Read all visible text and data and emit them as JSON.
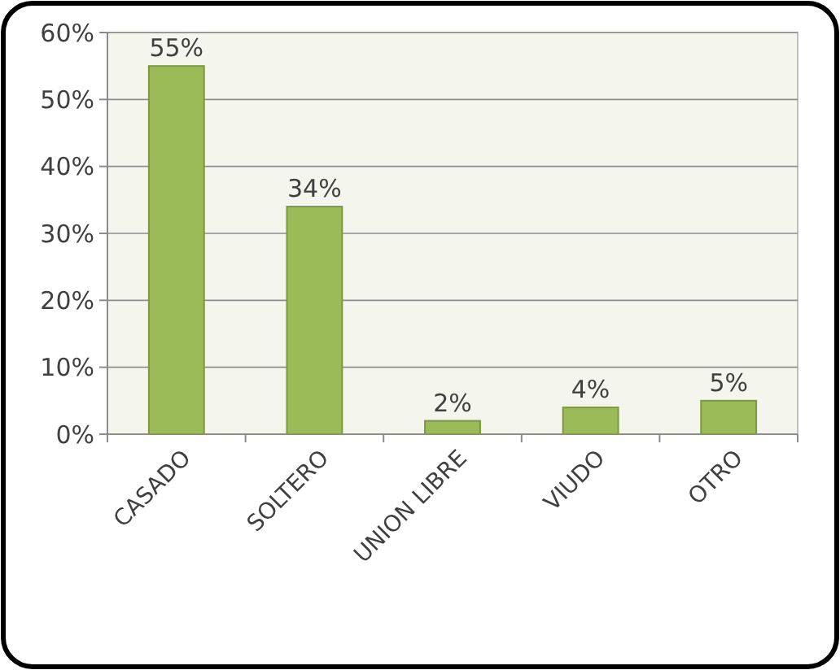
{
  "chart_data": {
    "type": "bar",
    "categories": [
      "CASADO",
      "SOLTERO",
      "UNION LIBRE",
      "VIUDO",
      "OTRO"
    ],
    "values": [
      55,
      34,
      2,
      4,
      5
    ],
    "value_labels": [
      "55%",
      "34%",
      "2%",
      "4%",
      "5%"
    ],
    "color": "#9bbb59",
    "ylim": [
      0,
      60
    ],
    "yticks": [
      {
        "value": 0,
        "label": "0%"
      },
      {
        "value": 10,
        "label": "10%"
      },
      {
        "value": 20,
        "label": "20%"
      },
      {
        "value": 30,
        "label": "30%"
      },
      {
        "value": 40,
        "label": "40%"
      },
      {
        "value": 50,
        "label": "50%"
      },
      {
        "value": 60,
        "label": "60%"
      }
    ],
    "grid": "y"
  }
}
